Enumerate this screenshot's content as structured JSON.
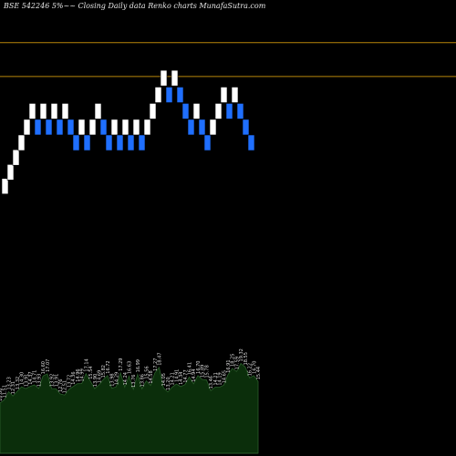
{
  "chart_data": {
    "type": "renko",
    "title": "BSE 542246  5%~~ Closing Daily data  Renko  charts MunafaSutra.com",
    "colors": {
      "background": "#000000",
      "up_brick": "#ffffff",
      "down_brick": "#1f6fff",
      "level_line": "#b8860b",
      "volume_fill": "#0b2e0b",
      "volume_stroke": "#2b5e2b"
    },
    "level_lines": [
      {
        "price": 14.99
      },
      {
        "price": 14.14
      }
    ],
    "bricks": [
      {
        "dir": "up",
        "price": 11.39
      },
      {
        "dir": "up",
        "price": 11.74
      },
      {
        "dir": "up",
        "price": 12.11
      },
      {
        "dir": "up",
        "price": 12.48
      },
      {
        "dir": "up",
        "price": 12.87
      },
      {
        "dir": "up",
        "price": 13.27
      },
      {
        "dir": "down",
        "price": 12.87
      },
      {
        "dir": "up",
        "price": 13.27
      },
      {
        "dir": "down",
        "price": 12.87
      },
      {
        "dir": "up",
        "price": 13.27
      },
      {
        "dir": "down",
        "price": 12.87
      },
      {
        "dir": "up",
        "price": 13.27
      },
      {
        "dir": "down",
        "price": 12.87
      },
      {
        "dir": "down",
        "price": 12.48
      },
      {
        "dir": "up",
        "price": 12.87
      },
      {
        "dir": "down",
        "price": 12.48
      },
      {
        "dir": "up",
        "price": 12.87
      },
      {
        "dir": "up",
        "price": 13.27
      },
      {
        "dir": "down",
        "price": 12.87
      },
      {
        "dir": "down",
        "price": 12.48
      },
      {
        "dir": "up",
        "price": 12.87
      },
      {
        "dir": "down",
        "price": 12.48
      },
      {
        "dir": "up",
        "price": 12.87
      },
      {
        "dir": "down",
        "price": 12.48
      },
      {
        "dir": "up",
        "price": 12.87
      },
      {
        "dir": "down",
        "price": 12.48
      },
      {
        "dir": "up",
        "price": 12.87
      },
      {
        "dir": "up",
        "price": 13.27
      },
      {
        "dir": "up",
        "price": 13.68
      },
      {
        "dir": "up",
        "price": 14.1
      },
      {
        "dir": "down",
        "price": 13.68
      },
      {
        "dir": "up",
        "price": 14.1
      },
      {
        "dir": "down",
        "price": 13.68
      },
      {
        "dir": "down",
        "price": 13.27
      },
      {
        "dir": "down",
        "price": 12.87
      },
      {
        "dir": "up",
        "price": 13.27
      },
      {
        "dir": "down",
        "price": 12.87
      },
      {
        "dir": "down",
        "price": 12.48
      },
      {
        "dir": "up",
        "price": 12.87
      },
      {
        "dir": "up",
        "price": 13.27
      },
      {
        "dir": "up",
        "price": 13.68
      },
      {
        "dir": "down",
        "price": 13.27
      },
      {
        "dir": "up",
        "price": 13.68
      },
      {
        "dir": "down",
        "price": 13.27
      },
      {
        "dir": "down",
        "price": 12.87
      },
      {
        "dir": "down",
        "price": 12.48
      }
    ],
    "volume_labels": [
      "10.80",
      "11.51",
      "13.23",
      "12.31",
      "13.32",
      "14.30",
      "13.91",
      "14.37",
      "14.71",
      "13.93",
      "16.60",
      "17.07",
      "13.92",
      "13.91",
      "12.76",
      "12.51",
      "13.72",
      "14.36",
      "14.96",
      "14.99",
      "17.14",
      "15.54",
      "13.90",
      "14.69",
      "15.82",
      "16.72",
      "13.98",
      "14.29",
      "17.29",
      "14.24",
      "16.63",
      "13.76",
      "16.99",
      "13.86",
      "15.56",
      "14.58",
      "17.27",
      "18.47",
      "14.05",
      "13.20",
      "14.21",
      "14.91",
      "14.34",
      "14.77",
      "16.41",
      "14.94",
      "16.70",
      "15.89",
      "15.78",
      "13.46",
      "14.21",
      "14.19",
      "14.65",
      "16.91",
      "18.25",
      "17.59",
      "19.32",
      "18.55",
      "16.22",
      "16.70",
      "15.44"
    ]
  }
}
